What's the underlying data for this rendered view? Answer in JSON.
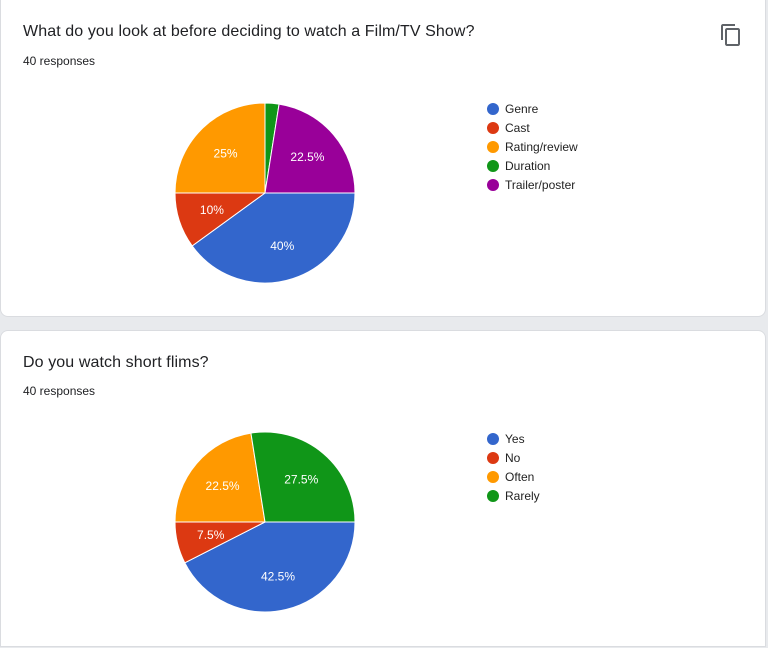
{
  "charts": [
    {
      "question": "What do you look at before deciding to watch a Film/TV Show?",
      "responses_label": "40 responses",
      "copy_icon": "copy-icon"
    },
    {
      "question": "Do you watch short flims?",
      "responses_label": "40 responses",
      "copy_icon": ""
    }
  ],
  "chart_data": [
    {
      "type": "pie",
      "title": "What do you look at before deciding to watch a Film/TV Show?",
      "slices": [
        {
          "label": "Genre",
          "value": 40,
          "pct_label": "40%",
          "color": "#3366cc"
        },
        {
          "label": "Cast",
          "value": 10,
          "pct_label": "10%",
          "color": "#dc3912"
        },
        {
          "label": "Rating/review",
          "value": 25,
          "pct_label": "25%",
          "color": "#ff9900"
        },
        {
          "label": "Duration",
          "value": 2.5,
          "pct_label": "",
          "color": "#109618"
        },
        {
          "label": "Trailer/poster",
          "value": 22.5,
          "pct_label": "22.5%",
          "color": "#990099"
        }
      ],
      "legend_position": "right"
    },
    {
      "type": "pie",
      "title": "Do you watch short flims?",
      "slices": [
        {
          "label": "Yes",
          "value": 42.5,
          "pct_label": "42.5%",
          "color": "#3366cc"
        },
        {
          "label": "No",
          "value": 7.5,
          "pct_label": "7.5%",
          "color": "#dc3912"
        },
        {
          "label": "Often",
          "value": 22.5,
          "pct_label": "22.5%",
          "color": "#ff9900"
        },
        {
          "label": "Rarely",
          "value": 27.5,
          "pct_label": "27.5%",
          "color": "#109618"
        }
      ],
      "legend_position": "right"
    }
  ]
}
